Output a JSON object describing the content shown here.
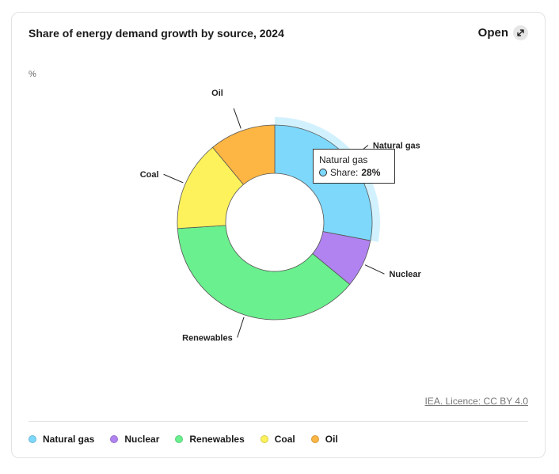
{
  "header": {
    "title": "Share of energy demand growth by source, 2024",
    "open_label": "Open"
  },
  "chart_data": {
    "type": "pie",
    "donut": true,
    "unit": "%",
    "categories": [
      "Natural gas",
      "Nuclear",
      "Renewables",
      "Coal",
      "Oil"
    ],
    "values": [
      28,
      8,
      38,
      15,
      11
    ],
    "colors": [
      "#7dd8fb",
      "#b083f0",
      "#6af08e",
      "#fdf15c",
      "#fdb543"
    ],
    "highlighted": "Natural gas",
    "legend_position": "bottom"
  },
  "tooltip": {
    "title": "Natural gas",
    "label": "Share:",
    "value": "28%"
  },
  "footer": {
    "credit": "IEA. Licence: CC BY 4.0"
  },
  "icons": {
    "open": "expand-arrows-icon"
  }
}
